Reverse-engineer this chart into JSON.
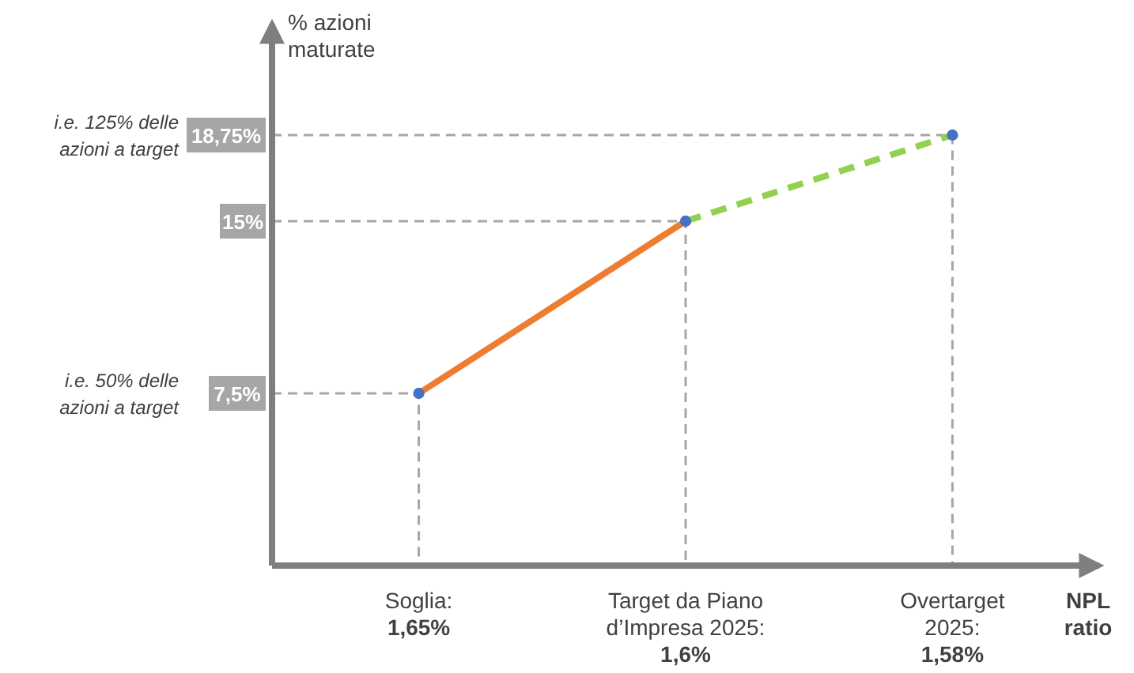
{
  "chart_data": {
    "type": "line",
    "xlabel": "NPL\nratio",
    "ylabel": "% azioni\nmaturate",
    "categories": [
      "Soglia:\n1,65%",
      "Target da Piano\nd’Impresa 2025:\n1,6%",
      "Overtarget\n2025:\n1,58%"
    ],
    "ylim": [
      0,
      23.6
    ],
    "yticks": [
      {
        "value": 7.5,
        "label": "7,5%"
      },
      {
        "value": 15,
        "label": "15%"
      },
      {
        "value": 18.75,
        "label": "18,75%"
      }
    ],
    "series": [
      {
        "color": "#ed7d31",
        "line_style": "solid",
        "values": [
          7.5,
          15,
          null
        ]
      },
      {
        "color": "#92d050",
        "line_style": "dashed",
        "values": [
          null,
          15,
          18.75
        ]
      },
      {
        "type": "scatter",
        "color": "#4472c4",
        "marker": "circle",
        "values": [
          7.5,
          15,
          18.75
        ]
      }
    ],
    "annotations": [
      "i.e. 50% delle azioni a target",
      "i.e. 125% delle azioni a target"
    ]
  }
}
